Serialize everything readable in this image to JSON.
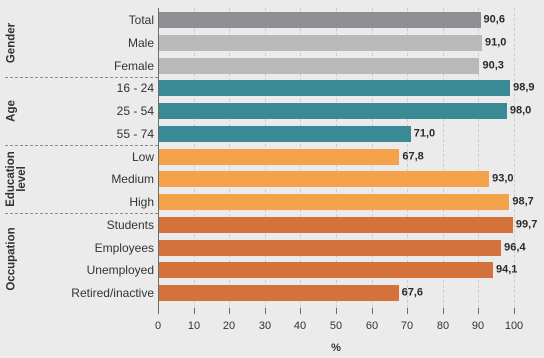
{
  "chart_data": {
    "type": "bar",
    "orientation": "horizontal",
    "categories": [
      "Total",
      "Male",
      "Female",
      "16 - 24",
      "25 - 54",
      "55 - 74",
      "Low",
      "Medium",
      "High",
      "Students",
      "Employees",
      "Unemployed",
      "Retired/inactive"
    ],
    "values": [
      90.6,
      91.0,
      90.3,
      98.9,
      98.0,
      71.0,
      67.8,
      93.0,
      98.7,
      99.7,
      96.4,
      94.1,
      67.6
    ],
    "value_labels": [
      "90,6",
      "91,0",
      "90,3",
      "98,9",
      "98,0",
      "71,0",
      "67,8",
      "93,0",
      "98,7",
      "99,7",
      "96,4",
      "94,1",
      "67,6"
    ],
    "bar_colors": [
      "#8e8f93",
      "#b9b9bb",
      "#b9b9bb",
      "#3a8a95",
      "#3a8a95",
      "#3a8a95",
      "#f5a24d",
      "#f5a24d",
      "#f5a24d",
      "#d3733b",
      "#d3733b",
      "#d3733b",
      "#d3733b"
    ],
    "groups": [
      {
        "label": "Gender",
        "categories": [
          "Total",
          "Male",
          "Female"
        ]
      },
      {
        "label": "Age",
        "categories": [
          "16 - 24",
          "25 - 54",
          "55 - 74"
        ]
      },
      {
        "label": "Education\nlevel",
        "categories": [
          "Low",
          "Medium",
          "High"
        ]
      },
      {
        "label": "Occupation",
        "categories": [
          "Students",
          "Employees",
          "Unemployed",
          "Retired/inactive"
        ]
      }
    ],
    "xlabel": "%",
    "xlim": [
      0,
      100
    ],
    "xticks": [
      "0",
      "10",
      "20",
      "30",
      "40",
      "50",
      "60",
      "70",
      "80",
      "90",
      "100"
    ],
    "grid": true
  }
}
